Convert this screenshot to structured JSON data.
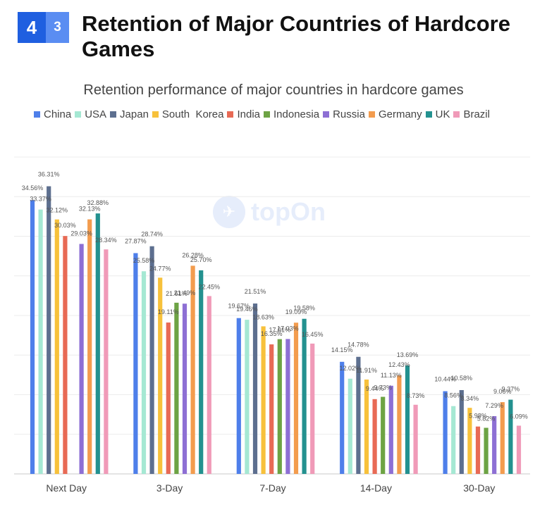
{
  "header": {
    "section_number": "4",
    "subsection_number": "3",
    "title": "Retention of Major Countries of Hardcore Games"
  },
  "watermark": {
    "text": "topOn",
    "icon": "topon-logo-icon"
  },
  "chart_data": {
    "type": "bar",
    "title": "Retention performance of major countries in hardcore games",
    "categories": [
      "Next Day",
      "3-Day",
      "7-Day",
      "14-Day",
      "30-Day"
    ],
    "ylim": [
      0,
      40
    ],
    "grid": true,
    "legend_position": "top",
    "series": [
      {
        "name": "China",
        "color": "#4e7fea",
        "values": [
          34.56,
          27.87,
          19.67,
          14.15,
          10.44
        ]
      },
      {
        "name": "USA",
        "color": "#a5e8d3",
        "values": [
          33.37,
          25.58,
          19.46,
          12.02,
          8.56
        ]
      },
      {
        "name": "Japan",
        "color": "#5d6f8f",
        "values": [
          36.31,
          28.74,
          21.51,
          14.78,
          10.58
        ]
      },
      {
        "name": "South  Korea",
        "color": "#f7c13b",
        "values": [
          32.12,
          24.77,
          18.63,
          11.91,
          8.34
        ]
      },
      {
        "name": "India",
        "color": "#e86a55",
        "values": [
          30.03,
          19.11,
          16.35,
          9.44,
          5.98
        ]
      },
      {
        "name": "Indonesia",
        "color": "#6da344",
        "values": [
          null,
          21.61,
          17.01,
          9.73,
          5.82
        ]
      },
      {
        "name": "Russia",
        "color": "#8d6fd4",
        "values": [
          29.03,
          21.49,
          17.03,
          11.13,
          7.29
        ]
      },
      {
        "name": "Germany",
        "color": "#f39c4e",
        "values": [
          32.13,
          26.28,
          19.09,
          12.43,
          9.06
        ]
      },
      {
        "name": "UK",
        "color": "#23918f",
        "values": [
          32.88,
          25.7,
          19.58,
          13.69,
          9.37
        ]
      },
      {
        "name": "Brazil",
        "color": "#f09ab8",
        "values": [
          28.34,
          22.45,
          16.45,
          8.73,
          6.09
        ]
      }
    ],
    "label_values": [
      [
        "34.56%",
        "27.87%",
        "19.67%",
        "14.15%",
        "10.44%"
      ],
      [
        "33.37%",
        "25.58%",
        "19.46%",
        "12.02%",
        "8.56%"
      ],
      [
        "36.31%",
        "28.74%",
        "21.51%",
        "14.78%",
        "10.58%"
      ],
      [
        "32.12%",
        "24.77%",
        "18.63%",
        "11.91%",
        "8.34%"
      ],
      [
        "30.03%",
        "19.11%",
        "16.35%",
        "9.44%",
        "5.98%"
      ],
      [
        "",
        "21.61%",
        "17.01%",
        "9.73%",
        "5.82%"
      ],
      [
        "29.03%",
        "21.49%",
        "17.03%",
        "11.13%",
        "7.29%"
      ],
      [
        "32.13%",
        "26.28%",
        "19.09%",
        "12.43%",
        "9.06%"
      ],
      [
        "32.88%",
        "25.70%",
        "19.58%",
        "13.69%",
        "9.37%"
      ],
      [
        "28.34%",
        "22.45%",
        "16.45%",
        "8.73%",
        "6.09%"
      ]
    ]
  }
}
